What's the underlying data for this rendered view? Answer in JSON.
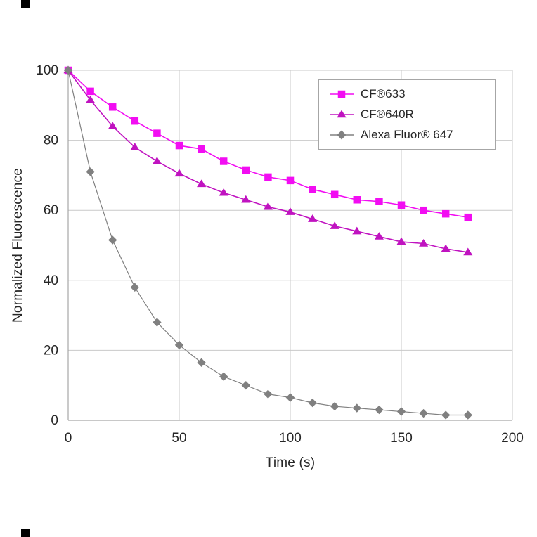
{
  "chart_data": {
    "type": "line",
    "title": "",
    "xlabel": "Time (s)",
    "ylabel": "Normalized Fluorescence",
    "xlim": [
      0,
      200
    ],
    "ylim": [
      0,
      100
    ],
    "xticks": [
      0,
      50,
      100,
      150,
      200
    ],
    "yticks": [
      0,
      20,
      40,
      60,
      80,
      100
    ],
    "grid": true,
    "legend_position": "top-right",
    "x": [
      0,
      10,
      20,
      30,
      40,
      50,
      60,
      70,
      80,
      90,
      100,
      110,
      120,
      130,
      140,
      150,
      160,
      170,
      180
    ],
    "series": [
      {
        "name": "CF®633",
        "marker": "square",
        "color": "#f20df2",
        "values": [
          100,
          94,
          89.5,
          85.5,
          82,
          78.5,
          77.5,
          74,
          71.5,
          69.5,
          68.5,
          66,
          64.5,
          63,
          62.5,
          61.5,
          60,
          59,
          58
        ]
      },
      {
        "name": "CF®640R",
        "marker": "triangle",
        "color": "#c013c0",
        "values": [
          100,
          91.5,
          84,
          78,
          74,
          70.5,
          67.5,
          65,
          63,
          61,
          59.5,
          57.5,
          55.5,
          54,
          52.5,
          51,
          50.5,
          49,
          48
        ]
      },
      {
        "name": "Alexa Fluor® 647",
        "marker": "diamond",
        "color": "#808080",
        "values": [
          100,
          71,
          51.5,
          38,
          28,
          21.5,
          16.5,
          12.5,
          10,
          7.5,
          6.5,
          5,
          4,
          3.5,
          3,
          2.5,
          2,
          1.5,
          1.5
        ]
      }
    ],
    "colors": {
      "gridline": "#c9c9c9",
      "axis": "#a6a6a6",
      "tick_text": "#262626"
    }
  }
}
